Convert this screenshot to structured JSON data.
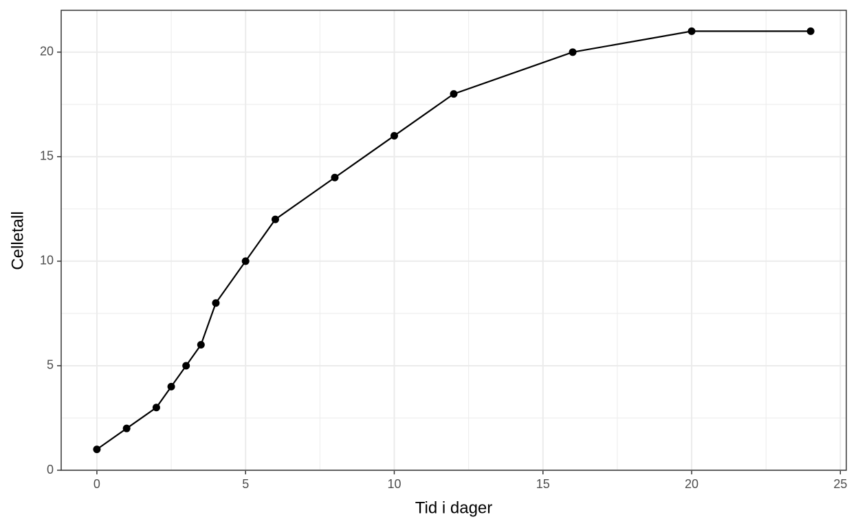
{
  "chart_data": {
    "type": "line",
    "x_label": "Tid i dager",
    "y_label": "Celletall",
    "x": [
      0,
      1,
      2,
      2.5,
      3,
      3.5,
      4,
      5,
      6,
      8,
      10,
      12,
      16,
      20,
      24
    ],
    "series": [
      {
        "color": "#000000",
        "values": [
          1,
          2,
          3,
          4,
          5,
          6,
          8,
          10,
          12,
          14,
          16,
          18,
          20,
          21,
          21
        ]
      }
    ],
    "xlim": [
      -1.2,
      25.2
    ],
    "ylim": [
      0,
      22
    ],
    "xticks": [
      0,
      5,
      10,
      15,
      20,
      25
    ],
    "yticks": [
      0,
      5,
      10,
      15,
      20
    ],
    "xminor": [
      2.5,
      7.5,
      12.5,
      17.5,
      22.5
    ],
    "yminor": [
      2.5,
      7.5,
      12.5,
      17.5
    ],
    "grid": true,
    "markers": true
  }
}
